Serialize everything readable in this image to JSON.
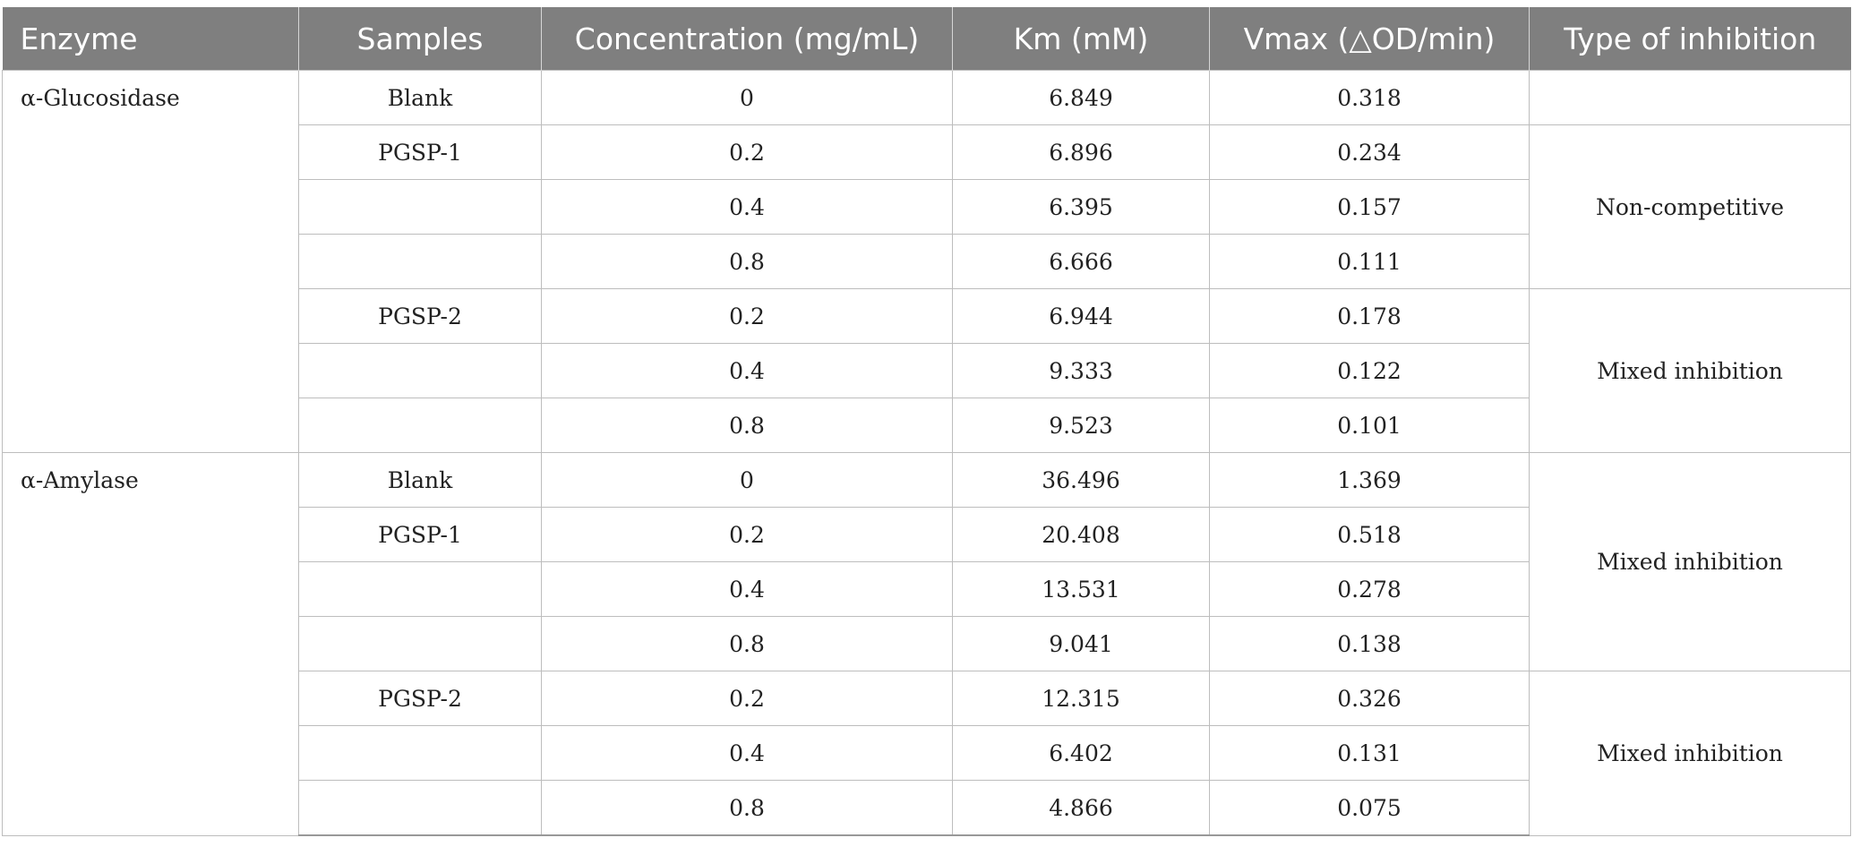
{
  "table": {
    "headers": {
      "enzyme": "Enzyme",
      "samples": "Samples",
      "concentration": "Concentration (mg/mL)",
      "km": "Km (mM)",
      "vmax": "Vmax (△OD/min)",
      "inhibition": "Type of inhibition"
    },
    "groups": [
      {
        "enzyme": "α-Glucosidase",
        "rows": [
          {
            "sample": "Blank",
            "concentration": "0",
            "km": "6.849",
            "vmax": "0.318"
          },
          {
            "sample": "PGSP-1",
            "concentration": "0.2",
            "km": "6.896",
            "vmax": "0.234"
          },
          {
            "sample": "",
            "concentration": "0.4",
            "km": "6.395",
            "vmax": "0.157"
          },
          {
            "sample": "",
            "concentration": "0.8",
            "km": "6.666",
            "vmax": "0.111"
          },
          {
            "sample": "PGSP-2",
            "concentration": "0.2",
            "km": "6.944",
            "vmax": "0.178"
          },
          {
            "sample": "",
            "concentration": "0.4",
            "km": "9.333",
            "vmax": "0.122"
          },
          {
            "sample": "",
            "concentration": "0.8",
            "km": "9.523",
            "vmax": "0.101"
          }
        ],
        "inhibition": [
          {
            "label": "",
            "rowspan": 1
          },
          {
            "label": "Non-competitive",
            "rowspan": 3
          },
          {
            "label": "Mixed inhibition",
            "rowspan": 3
          }
        ]
      },
      {
        "enzyme": "α-Amylase",
        "rows": [
          {
            "sample": "Blank",
            "concentration": "0",
            "km": "36.496",
            "vmax": "1.369"
          },
          {
            "sample": "PGSP-1",
            "concentration": "0.2",
            "km": "20.408",
            "vmax": "0.518"
          },
          {
            "sample": "",
            "concentration": "0.4",
            "km": "13.531",
            "vmax": "0.278"
          },
          {
            "sample": "",
            "concentration": "0.8",
            "km": "9.041",
            "vmax": "0.138"
          },
          {
            "sample": "PGSP-2",
            "concentration": "0.2",
            "km": "12.315",
            "vmax": "0.326"
          },
          {
            "sample": "",
            "concentration": "0.4",
            "km": "6.402",
            "vmax": "0.131"
          },
          {
            "sample": "",
            "concentration": "0.8",
            "km": "4.866",
            "vmax": "0.075"
          }
        ],
        "inhibition": [
          {
            "label": "Mixed inhibition",
            "rowspan": 4
          },
          {
            "label": "Mixed inhibition",
            "rowspan": 3
          }
        ]
      }
    ]
  }
}
